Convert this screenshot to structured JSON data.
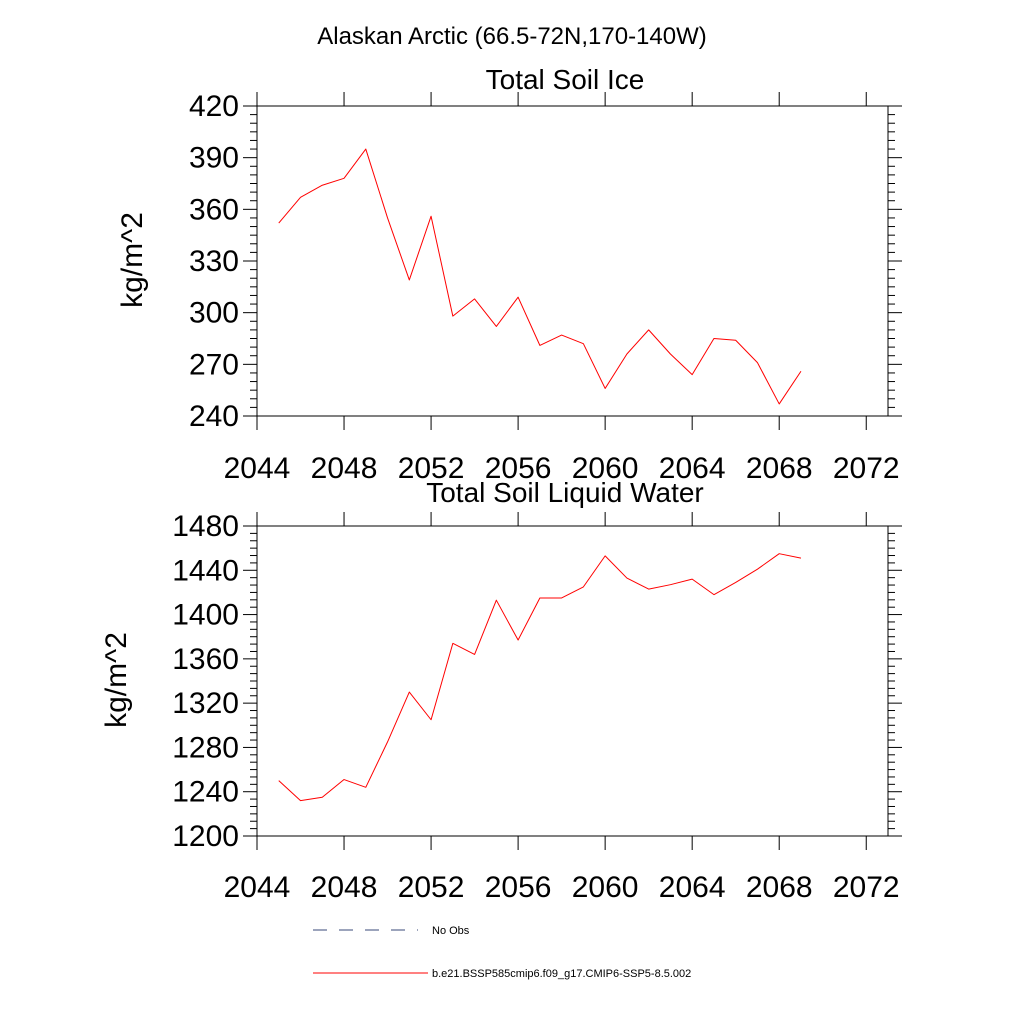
{
  "figure": {
    "title": "Alaskan Arctic (66.5-72N,170-140W)"
  },
  "chart_data": [
    {
      "type": "line",
      "title": "Total Soil Ice",
      "xlabel": "",
      "ylabel": "kg/m^2",
      "xlim": [
        2044,
        2073
      ],
      "ylim": [
        240,
        420
      ],
      "x_ticks": [
        2044,
        2048,
        2052,
        2056,
        2060,
        2064,
        2068,
        2072
      ],
      "y_ticks": [
        240,
        270,
        300,
        330,
        360,
        390,
        420
      ],
      "x_tick_labels": [
        "2044",
        "2048",
        "2052",
        "2056",
        "2060",
        "2064",
        "2068",
        "2072"
      ],
      "y_tick_labels": [
        "240",
        "270",
        "300",
        "330",
        "360",
        "390",
        "420"
      ],
      "grid": false,
      "series": [
        {
          "name": "b.e21.BSSP585cmip6.f09_g17.CMIP6-SSP5-8.5.002",
          "color": "#ff0000",
          "x": [
            2045,
            2046,
            2047,
            2048,
            2049,
            2050,
            2051,
            2052,
            2053,
            2054,
            2055,
            2056,
            2057,
            2058,
            2059,
            2060,
            2061,
            2062,
            2063,
            2064,
            2065,
            2066,
            2067,
            2068,
            2069
          ],
          "values": [
            352,
            367,
            374,
            378,
            395,
            355,
            319,
            356,
            298,
            308,
            292,
            309,
            281,
            287,
            282,
            256,
            276,
            290,
            276,
            264,
            285,
            284,
            271,
            247,
            266
          ]
        }
      ]
    },
    {
      "type": "line",
      "title": "Total Soil Liquid Water",
      "xlabel": "",
      "ylabel": "kg/m^2",
      "xlim": [
        2044,
        2073
      ],
      "ylim": [
        1200,
        1480
      ],
      "x_ticks": [
        2044,
        2048,
        2052,
        2056,
        2060,
        2064,
        2068,
        2072
      ],
      "y_ticks": [
        1200,
        1240,
        1280,
        1320,
        1360,
        1400,
        1440,
        1480
      ],
      "x_tick_labels": [
        "2044",
        "2048",
        "2052",
        "2056",
        "2060",
        "2064",
        "2068",
        "2072"
      ],
      "y_tick_labels": [
        "1200",
        "1240",
        "1280",
        "1320",
        "1360",
        "1400",
        "1440",
        "1480"
      ],
      "grid": false,
      "series": [
        {
          "name": "b.e21.BSSP585cmip6.f09_g17.CMIP6-SSP5-8.5.002",
          "color": "#ff0000",
          "x": [
            2045,
            2046,
            2047,
            2048,
            2049,
            2050,
            2051,
            2052,
            2053,
            2054,
            2055,
            2056,
            2057,
            2058,
            2059,
            2060,
            2061,
            2062,
            2063,
            2064,
            2065,
            2066,
            2067,
            2068,
            2069
          ],
          "values": [
            1250,
            1232,
            1235,
            1251,
            1244,
            1285,
            1330,
            1305,
            1374,
            1364,
            1413,
            1377,
            1415,
            1415,
            1425,
            1453,
            1433,
            1423,
            1427,
            1432,
            1418,
            1429,
            1441,
            1455,
            1451
          ]
        }
      ]
    }
  ],
  "legend": {
    "placement": "bottom",
    "items": [
      {
        "label": "No Obs",
        "color": "#3a4a7a",
        "style": "dashed"
      },
      {
        "label": "b.e21.BSSP585cmip6.f09_g17.CMIP6-SSP5-8.5.002",
        "color": "#ff0000",
        "style": "solid"
      }
    ]
  }
}
